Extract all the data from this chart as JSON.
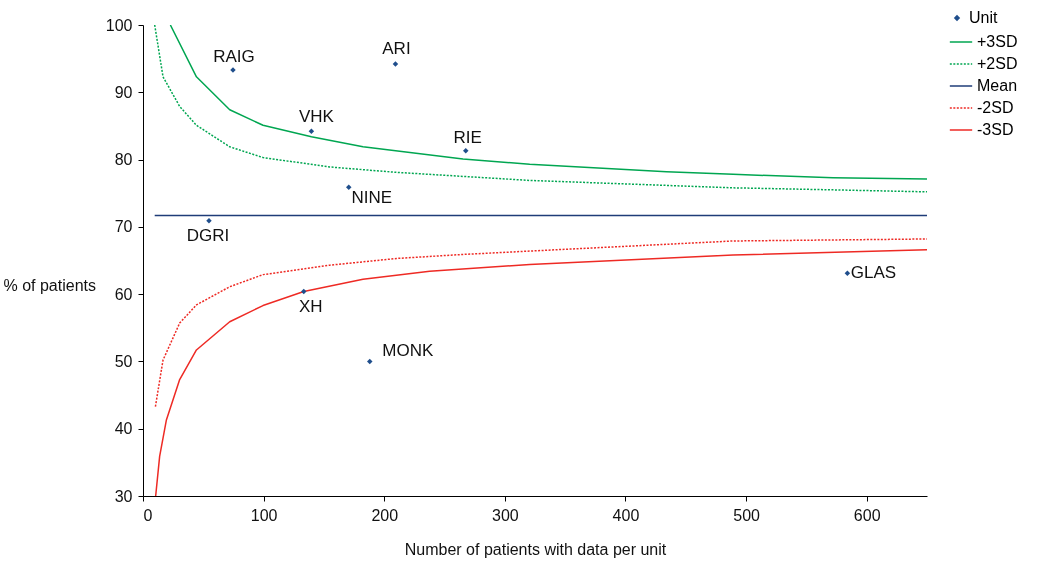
{
  "chart_data": {
    "type": "scatter",
    "xlabel": "Number of patients with data per unit",
    "ylabel": "% of patients",
    "xlim": [
      0,
      650
    ],
    "xticks": [
      0,
      100,
      200,
      300,
      400,
      500,
      600
    ],
    "ylim": [
      30,
      100
    ],
    "yticks": [
      30,
      40,
      50,
      60,
      70,
      80,
      90,
      100
    ],
    "legend": "top right",
    "series": [
      {
        "name": "Unit",
        "marker": "diamond",
        "color": "#1f4e8c",
        "x": [
          74.6,
          209.3,
          139.6,
          267.6,
          170.6,
          54.7,
          133.3,
          188,
          584
        ],
        "values": [
          93.3,
          94.2,
          84.2,
          81.3,
          75.9,
          70.9,
          60.4,
          50.0,
          63.1
        ]
      },
      {
        "name": "+3SD",
        "type": "line",
        "line_style": "solid",
        "color": "#00a651",
        "x": [
          22.7,
          44.3,
          71.9,
          99.5,
          139.6,
          182.4,
          265.3,
          320.6,
          434,
          489.2,
          572.1,
          650
        ],
        "values": [
          100,
          92.3,
          87.4,
          85.1,
          83.4,
          81.9,
          80.1,
          79.3,
          78.2,
          77.8,
          77.3,
          77.1
        ]
      },
      {
        "name": "+2SD",
        "type": "line",
        "line_style": "dotted",
        "color": "#00a651",
        "x": [
          9.7,
          16.6,
          30.4,
          44.3,
          71.9,
          99.5,
          154.8,
          210.1,
          265.3,
          320.6,
          489.2,
          572.1,
          650
        ],
        "values": [
          100,
          92.3,
          87.9,
          85.1,
          81.9,
          80.3,
          78.9,
          78.1,
          77.5,
          76.9,
          75.8,
          75.5,
          75.2
        ]
      },
      {
        "name": "Mean",
        "type": "line",
        "line_style": "solid",
        "color": "#1f3c78",
        "x": [
          9.7,
          650
        ],
        "values": [
          71.7,
          71.7
        ]
      },
      {
        "name": "-2SD",
        "type": "line",
        "line_style": "dotted",
        "color": "#ee2a24",
        "x": [
          10.3,
          16.6,
          30.4,
          44.3,
          71.9,
          99.5,
          154.8,
          210.1,
          265.3,
          320.6,
          489.2,
          650
        ],
        "values": [
          43.3,
          50.2,
          55.7,
          58.4,
          61.1,
          62.9,
          64.3,
          65.3,
          65.9,
          66.4,
          67.9,
          68.2
        ]
      },
      {
        "name": "-3SD",
        "type": "line",
        "line_style": "solid",
        "color": "#ee2a24",
        "x": [
          10.5,
          13.8,
          19.4,
          30.4,
          44.3,
          71.9,
          99.5,
          133.3,
          182.4,
          237.7,
          320.6,
          489.2,
          650
        ],
        "values": [
          30,
          35.9,
          41.3,
          47.3,
          51.7,
          55.9,
          58.3,
          60.4,
          62.2,
          63.4,
          64.4,
          65.8,
          66.6
        ]
      }
    ],
    "annotations": [
      {
        "text": "RAIG",
        "x": 74.6,
        "y": 93.3
      },
      {
        "text": "ARI",
        "x": 209.3,
        "y": 94.2
      },
      {
        "text": "VHK",
        "x": 139.6,
        "y": 84.2
      },
      {
        "text": "RIE",
        "x": 267.6,
        "y": 81.3
      },
      {
        "text": "NINE",
        "x": 170.6,
        "y": 75.9
      },
      {
        "text": "DGRI",
        "x": 54.7,
        "y": 70.9
      },
      {
        "text": "XH",
        "x": 133.3,
        "y": 60.4
      },
      {
        "text": "MONK",
        "x": 188,
        "y": 50.0
      },
      {
        "text": "GLAS",
        "x": 584,
        "y": 63.1
      }
    ]
  }
}
